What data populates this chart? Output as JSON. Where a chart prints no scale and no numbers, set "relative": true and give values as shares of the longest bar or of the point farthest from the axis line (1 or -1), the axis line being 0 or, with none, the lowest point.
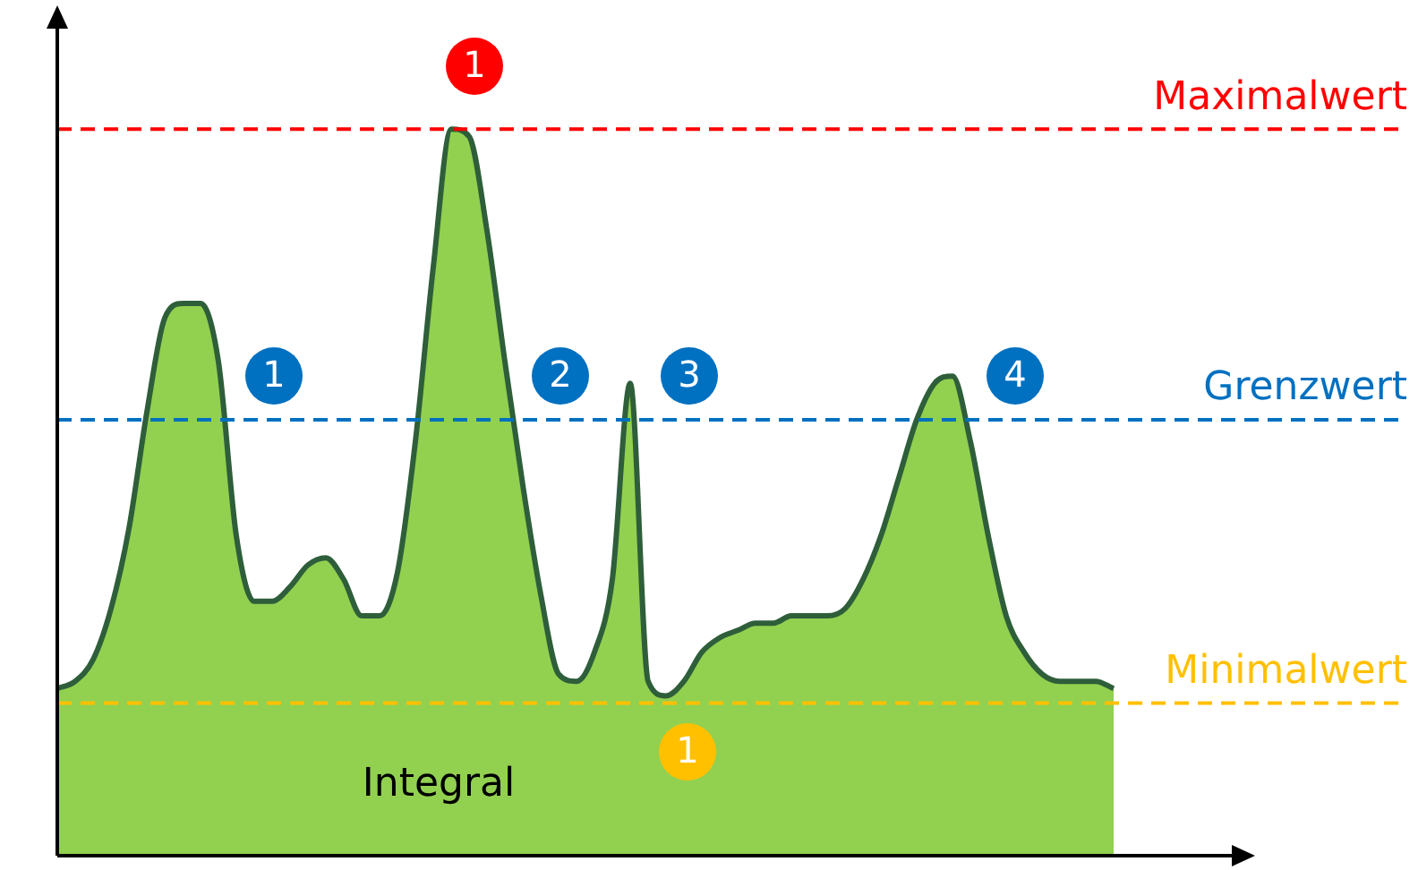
{
  "chart_data": {
    "type": "area",
    "relative": true,
    "categories": [
      null,
      null,
      null,
      null,
      null,
      null,
      null,
      null,
      null,
      null,
      null,
      null,
      null,
      null,
      null,
      null,
      null,
      null,
      null,
      null,
      null,
      null,
      null,
      null,
      null,
      null,
      null,
      null,
      null,
      null,
      null,
      null,
      null,
      null,
      null,
      null,
      null,
      null,
      null,
      null,
      null,
      null,
      null,
      null,
      null,
      null,
      null,
      null,
      null,
      null,
      null,
      null,
      null,
      null,
      null,
      null,
      null,
      null,
      null,
      null,
      null,
      null,
      null,
      null,
      null,
      null,
      null
    ],
    "series": [
      {
        "color": "#92d050",
        "values": [
          0.23,
          0.24,
          0.27,
          0.34,
          0.45,
          0.61,
          0.74,
          0.76,
          0.76,
          0.68,
          0.44,
          0.35,
          0.35,
          0.37,
          0.4,
          0.41,
          0.38,
          0.33,
          0.33,
          0.39,
          0.57,
          0.81,
          1,
          0.99,
          0.86,
          0.68,
          0.51,
          0.36,
          0.25,
          0.24,
          0.28,
          0.38,
          0.65,
          0.24,
          0.22,
          0.24,
          0.28,
          0.3,
          0.31,
          0.32,
          0.32,
          0.33,
          0.33,
          0.33,
          0.34,
          0.38,
          0.44,
          0.52,
          0.6,
          0.65,
          0.66,
          0.57,
          0.44,
          0.33,
          0.28,
          0.25,
          0.24,
          0.24,
          0.24,
          0.23,
          null,
          null,
          null,
          null,
          null,
          null,
          null
        ]
      }
    ],
    "ref_lines": [
      {
        "axis": "y",
        "value": 1,
        "label": "Maximalwert",
        "color": "#ff0000",
        "line_style": "dashed"
      },
      {
        "axis": "y",
        "value": 0.6,
        "label": "Grenzwert",
        "color": "#0070c0",
        "line_style": "dashed"
      },
      {
        "axis": "y",
        "value": 0.21,
        "label": "Minimalwert",
        "color": "#ffc000",
        "line_style": "dashed"
      }
    ],
    "annotations": [
      "1",
      "1",
      "2",
      "3",
      "4",
      "1",
      "Integral"
    ],
    "legend": false
  }
}
